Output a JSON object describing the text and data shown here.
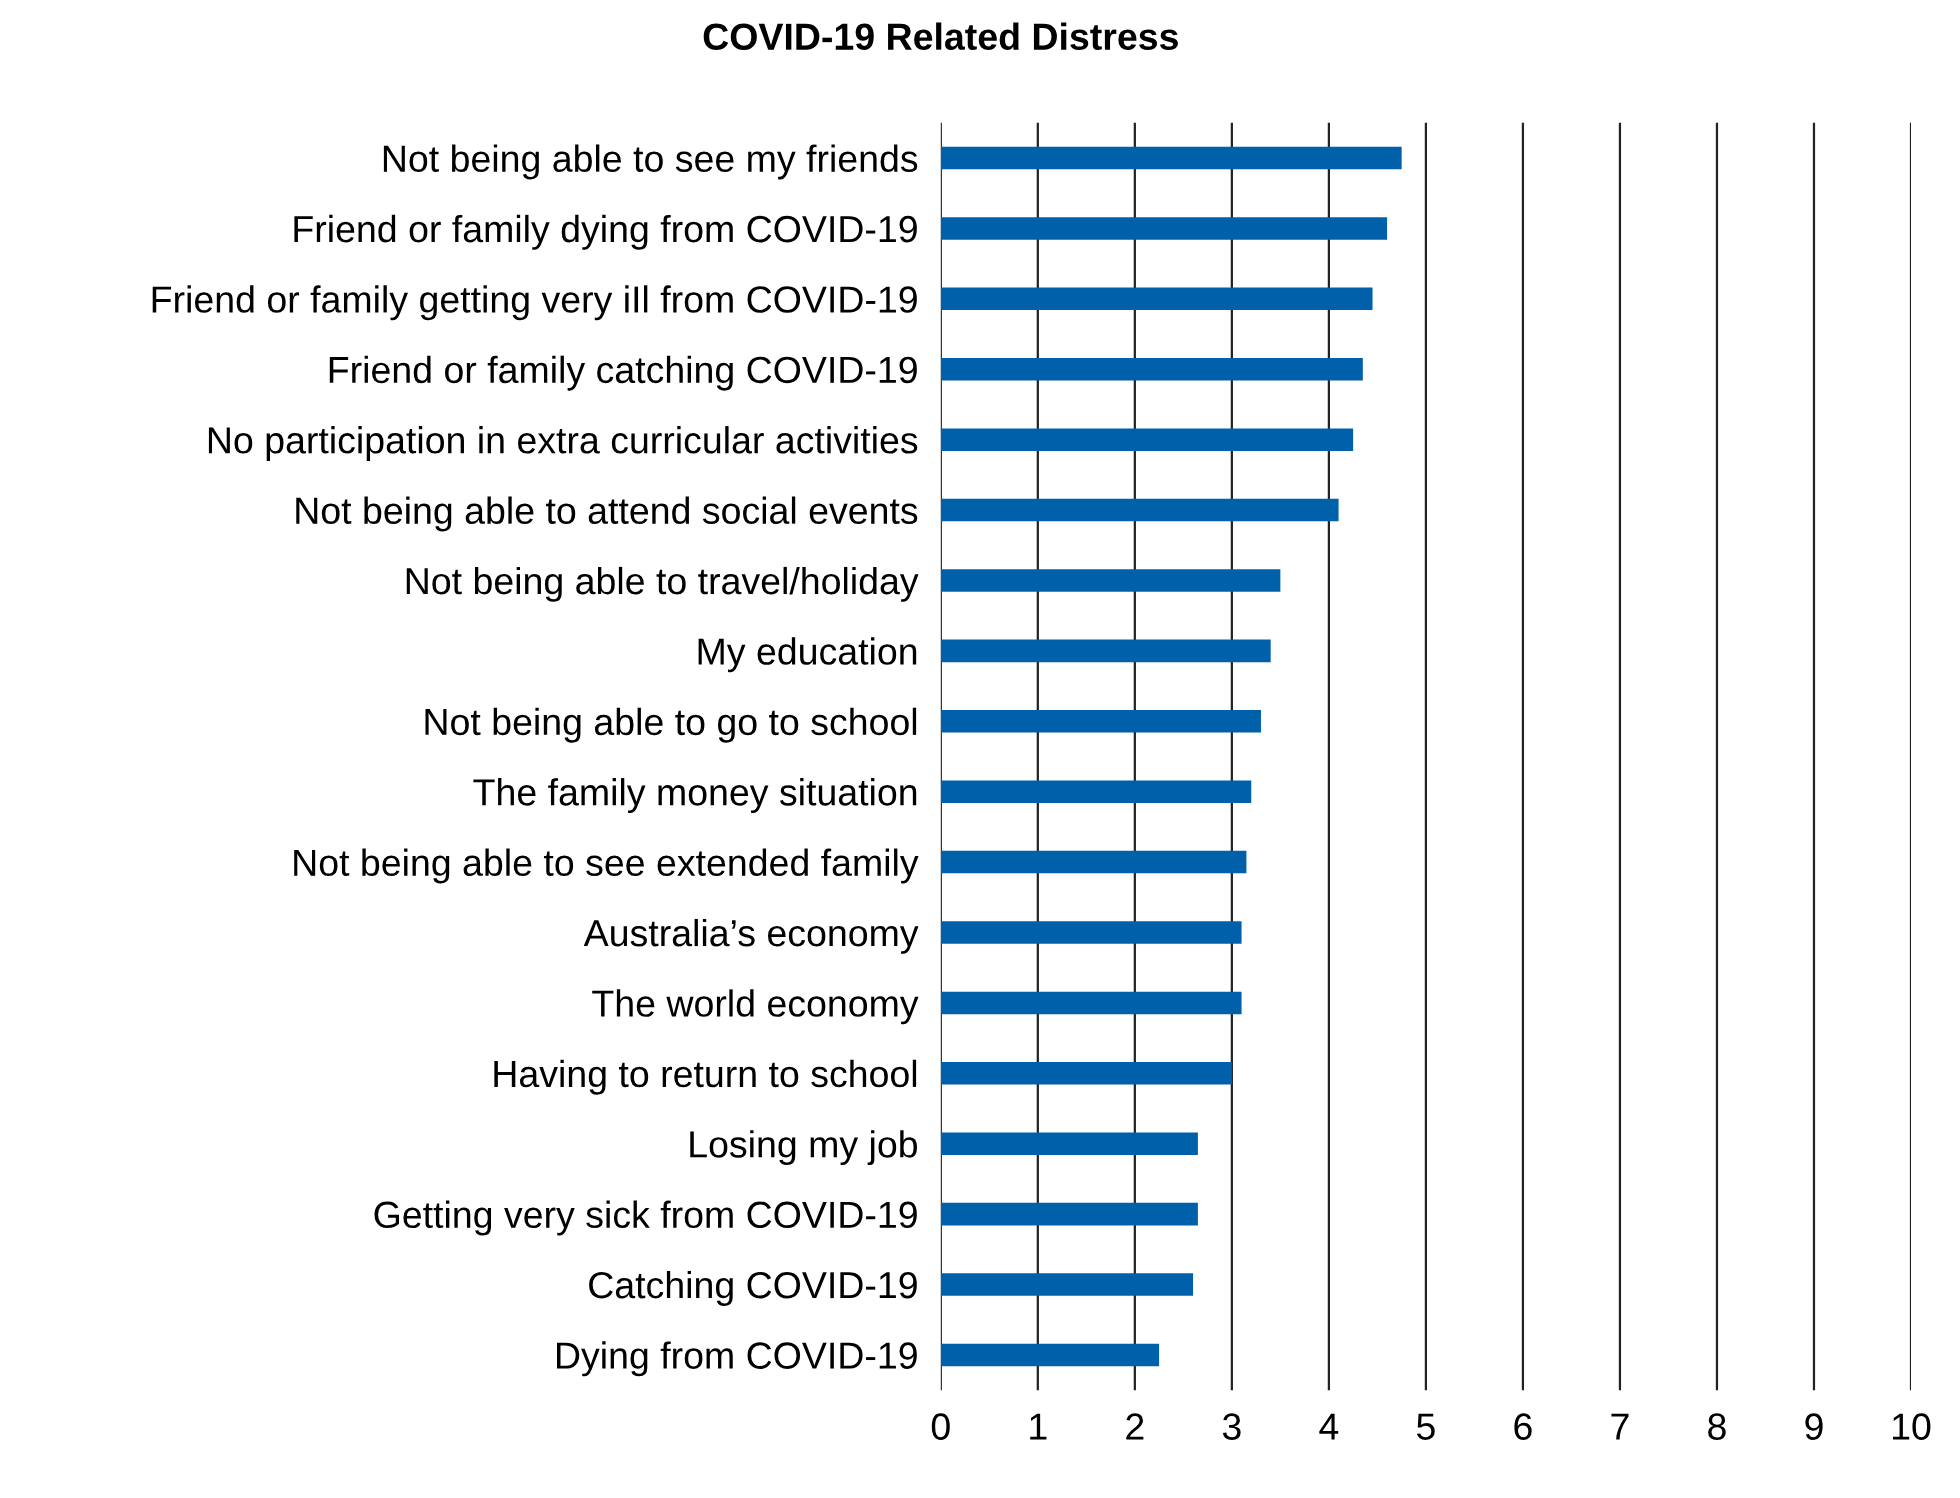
{
  "chart_data": {
    "type": "bar",
    "orientation": "horizontal",
    "title": "COVID-19 Related Distress",
    "categories": [
      "Not being able to see my friends",
      "Friend or family dying from COVID-19",
      "Friend or family getting very iIl from COVID-19",
      "Friend or family catching COVID-19",
      "No participation in extra curricular activities",
      "Not being able to attend social events",
      "Not being able to travel/holiday",
      "My education",
      "Not being able to go to school",
      "The family money situation",
      "Not being able to see extended family",
      "Australia’s economy",
      "The world economy",
      "Having to return to school",
      "Losing my job",
      "Getting very sick from COVID-19",
      "Catching COVID-19",
      "Dying from COVID-19"
    ],
    "values": [
      4.75,
      4.6,
      4.45,
      4.35,
      4.25,
      4.1,
      3.5,
      3.4,
      3.3,
      3.2,
      3.15,
      3.1,
      3.1,
      3.0,
      2.65,
      2.65,
      2.6,
      2.25
    ],
    "color": "#0061aa",
    "xlim": [
      0,
      10
    ],
    "xticks": [
      0,
      1,
      2,
      3,
      4,
      5,
      6,
      7,
      8,
      9,
      10
    ],
    "grid": "x"
  }
}
